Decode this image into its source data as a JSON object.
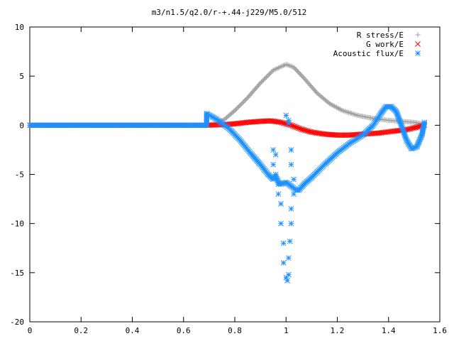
{
  "chart_data": {
    "type": "scatter",
    "title": "m3/n1.5/q2.0/r-+.44-j229/M5.0/512",
    "xlabel": "",
    "ylabel": "",
    "xlim": [
      0,
      1.6
    ],
    "ylim": [
      -20,
      10
    ],
    "x_ticks": [
      0,
      0.2,
      0.4,
      0.6,
      0.8,
      1,
      1.2,
      1.4,
      1.6
    ],
    "x_tick_labels": [
      "0",
      "0.2",
      "0.4",
      "0.6",
      "0.8",
      "1",
      "1.2",
      "1.4",
      "1.6"
    ],
    "y_ticks": [
      -20,
      -15,
      -10,
      -5,
      0,
      5,
      10
    ],
    "y_tick_labels": [
      "-20",
      "-15",
      "-10",
      "-5",
      "0",
      "5",
      "10"
    ],
    "grid": false,
    "legend_position": "top-right",
    "series": [
      {
        "name": "R stress/E",
        "marker": "plus",
        "color": "#a0a0a0",
        "points": [
          [
            0.0,
            0
          ],
          [
            0.1,
            0
          ],
          [
            0.2,
            0
          ],
          [
            0.3,
            0
          ],
          [
            0.4,
            0
          ],
          [
            0.5,
            0
          ],
          [
            0.6,
            0
          ],
          [
            0.69,
            0
          ],
          [
            0.72,
            0.15
          ],
          [
            0.76,
            0.6
          ],
          [
            0.8,
            1.5
          ],
          [
            0.85,
            2.8
          ],
          [
            0.9,
            4.3
          ],
          [
            0.95,
            5.6
          ],
          [
            1.0,
            6.2
          ],
          [
            1.03,
            5.9
          ],
          [
            1.07,
            4.8
          ],
          [
            1.12,
            3.3
          ],
          [
            1.17,
            2.2
          ],
          [
            1.22,
            1.5
          ],
          [
            1.28,
            1.0
          ],
          [
            1.34,
            0.7
          ],
          [
            1.4,
            0.5
          ],
          [
            1.45,
            0.4
          ],
          [
            1.5,
            0.3
          ],
          [
            1.54,
            0.1
          ]
        ]
      },
      {
        "name": "G work/E",
        "marker": "cross",
        "color": "#ff0000",
        "points": [
          [
            0.0,
            0
          ],
          [
            0.1,
            0
          ],
          [
            0.2,
            0
          ],
          [
            0.3,
            0
          ],
          [
            0.4,
            0
          ],
          [
            0.5,
            0
          ],
          [
            0.6,
            0
          ],
          [
            0.69,
            0
          ],
          [
            0.75,
            0.05
          ],
          [
            0.8,
            0.15
          ],
          [
            0.85,
            0.3
          ],
          [
            0.9,
            0.4
          ],
          [
            0.94,
            0.45
          ],
          [
            0.98,
            0.3
          ],
          [
            1.02,
            0
          ],
          [
            1.06,
            -0.4
          ],
          [
            1.1,
            -0.7
          ],
          [
            1.15,
            -0.9
          ],
          [
            1.2,
            -1.0
          ],
          [
            1.25,
            -1.0
          ],
          [
            1.3,
            -0.9
          ],
          [
            1.36,
            -0.8
          ],
          [
            1.42,
            -0.6
          ],
          [
            1.47,
            -0.45
          ],
          [
            1.51,
            -0.2
          ],
          [
            1.54,
            0
          ]
        ]
      },
      {
        "name": "Acoustic flux/E",
        "marker": "star",
        "color": "#1e90ff",
        "curve": [
          [
            0.0,
            0
          ],
          [
            0.1,
            0
          ],
          [
            0.2,
            0
          ],
          [
            0.3,
            0
          ],
          [
            0.4,
            0
          ],
          [
            0.5,
            0
          ],
          [
            0.6,
            0
          ],
          [
            0.69,
            0
          ],
          [
            0.69,
            1.2
          ],
          [
            0.73,
            0.6
          ],
          [
            0.78,
            -0.4
          ],
          [
            0.82,
            -1.5
          ],
          [
            0.86,
            -2.8
          ],
          [
            0.9,
            -4.0
          ],
          [
            0.93,
            -5.0
          ],
          [
            0.95,
            -5.5
          ],
          [
            0.96,
            -5.2
          ],
          [
            0.97,
            -5.8
          ],
          [
            0.98,
            -6.0
          ],
          [
            1.0,
            -5.8
          ],
          [
            1.02,
            -6.2
          ],
          [
            1.04,
            -6.6
          ],
          [
            1.05,
            -6.6
          ],
          [
            1.07,
            -6.0
          ],
          [
            1.1,
            -5.3
          ],
          [
            1.15,
            -4.0
          ],
          [
            1.2,
            -2.8
          ],
          [
            1.25,
            -1.8
          ],
          [
            1.3,
            -1.0
          ],
          [
            1.34,
            0
          ],
          [
            1.37,
            1.2
          ],
          [
            1.39,
            1.9
          ],
          [
            1.41,
            1.9
          ],
          [
            1.43,
            1.4
          ],
          [
            1.45,
            0
          ],
          [
            1.47,
            -1.5
          ],
          [
            1.49,
            -2.4
          ],
          [
            1.51,
            -2.2
          ],
          [
            1.53,
            -1.0
          ],
          [
            1.54,
            0.3
          ]
        ],
        "scatter": [
          [
            0.95,
            -2.5
          ],
          [
            0.96,
            -3.0
          ],
          [
            0.95,
            -4.0
          ],
          [
            0.96,
            -5.0
          ],
          [
            0.97,
            -6.0
          ],
          [
            0.97,
            -7.0
          ],
          [
            0.98,
            -8.0
          ],
          [
            0.98,
            -10.0
          ],
          [
            0.99,
            -12.0
          ],
          [
            0.99,
            -14.0
          ],
          [
            1.0,
            -15.5
          ],
          [
            1.005,
            -15.8
          ],
          [
            1.01,
            -15.2
          ],
          [
            1.01,
            -13.5
          ],
          [
            1.015,
            -11.8
          ],
          [
            1.02,
            -10.0
          ],
          [
            1.02,
            -8.5
          ],
          [
            1.03,
            -7.0
          ],
          [
            1.03,
            -5.5
          ],
          [
            1.02,
            -4.0
          ],
          [
            1.02,
            -2.5
          ],
          [
            1.01,
            0.5
          ],
          [
            1.0,
            1.0
          ],
          [
            1.01,
            0.2
          ]
        ]
      }
    ]
  }
}
